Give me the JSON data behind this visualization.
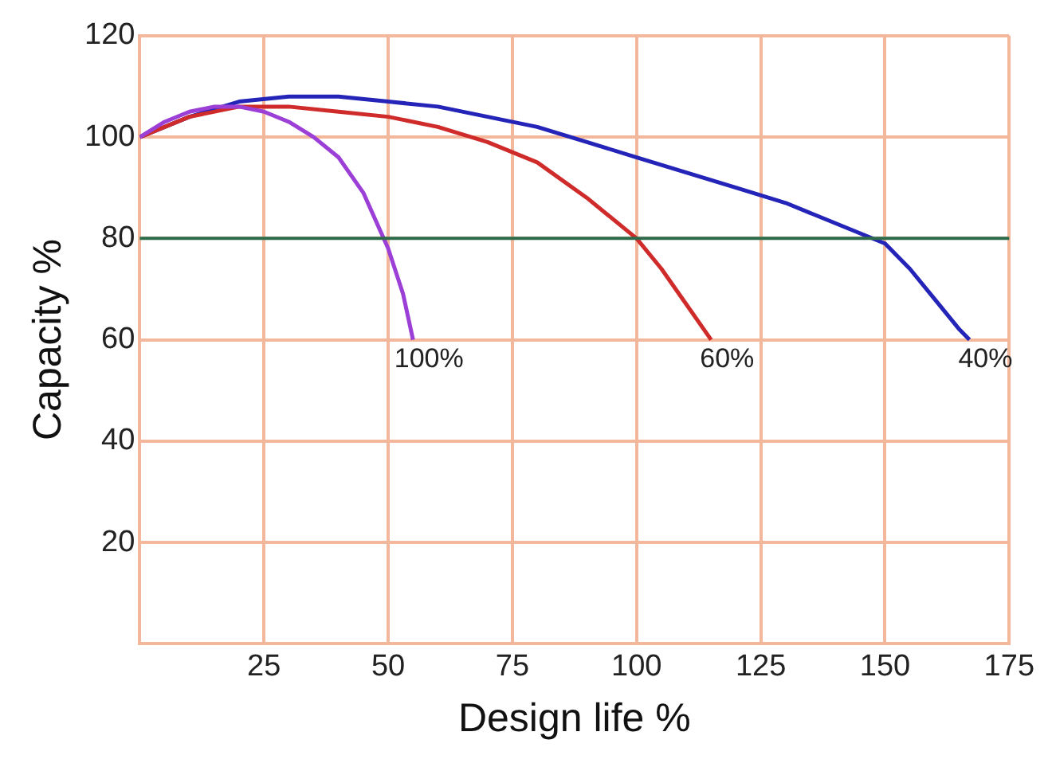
{
  "chart_data": {
    "type": "line",
    "xlabel": "Design life %",
    "ylabel": "Capacity %",
    "xlim": [
      0,
      175
    ],
    "xticks": [
      {
        "value": 0,
        "label": null
      },
      25,
      50,
      75,
      100,
      125,
      150,
      175
    ],
    "ylim": [
      0,
      120
    ],
    "yticks": [
      {
        "value": 0,
        "label": null
      },
      20,
      40,
      60,
      80,
      100,
      120
    ],
    "grid": true,
    "legend": false,
    "marker": "none",
    "line_style": "solid",
    "ref_lines": [
      {
        "axis": "y",
        "value": 80,
        "color": "#2e6b4a"
      }
    ],
    "series": [
      {
        "name": "100%",
        "color": "#9b3fd6",
        "x": [
          0,
          5,
          10,
          15,
          20,
          25,
          30,
          35,
          40,
          45,
          50,
          53,
          55
        ],
        "values": [
          100,
          103,
          105,
          106,
          106,
          105,
          103,
          100,
          96,
          89,
          78,
          69,
          60
        ]
      },
      {
        "name": "60%",
        "color": "#d02b2b",
        "x": [
          0,
          10,
          20,
          30,
          40,
          50,
          60,
          70,
          80,
          90,
          100,
          105,
          110,
          115
        ],
        "values": [
          100,
          104,
          106,
          106,
          105,
          104,
          102,
          99,
          95,
          88,
          80,
          74,
          67,
          60
        ]
      },
      {
        "name": "40%",
        "color": "#2424b8",
        "x": [
          0,
          10,
          20,
          30,
          40,
          50,
          60,
          70,
          80,
          90,
          100,
          110,
          120,
          130,
          140,
          150,
          155,
          160,
          165,
          167
        ],
        "values": [
          100,
          104,
          107,
          108,
          108,
          107,
          106,
          104,
          102,
          99,
          96,
          93,
          90,
          87,
          83,
          79,
          74,
          68,
          62,
          60
        ]
      }
    ]
  }
}
